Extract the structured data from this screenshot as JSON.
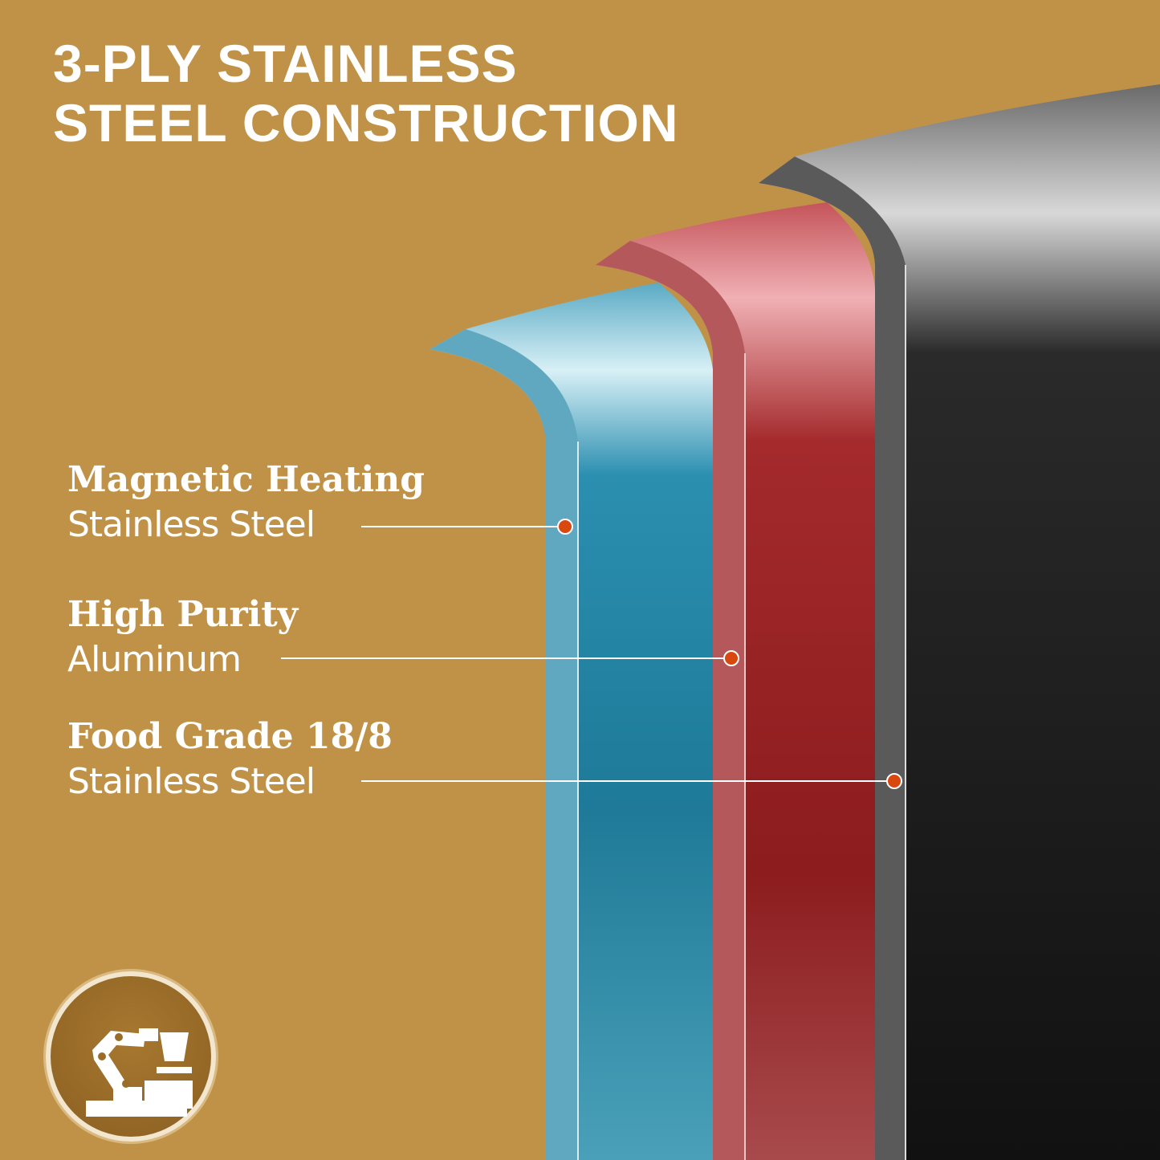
{
  "title": {
    "line1": "3-PLY STAINLESS",
    "line2": "STEEL CONSTRUCTION"
  },
  "layers": [
    {
      "line1": "Magnetic Heating",
      "line2": "Stainless Steel",
      "color": "#2b8fb0"
    },
    {
      "line1": "High Purity",
      "line2": "Aluminum",
      "color": "#a42a2c"
    },
    {
      "line1": "Food Grade 18/8",
      "line2": "Stainless Steel",
      "color": "#1c1c1c"
    }
  ],
  "colors": {
    "background": "#c09248",
    "marker": "#d9480f"
  },
  "badge": {
    "icon": "robotic-arm-icon"
  }
}
